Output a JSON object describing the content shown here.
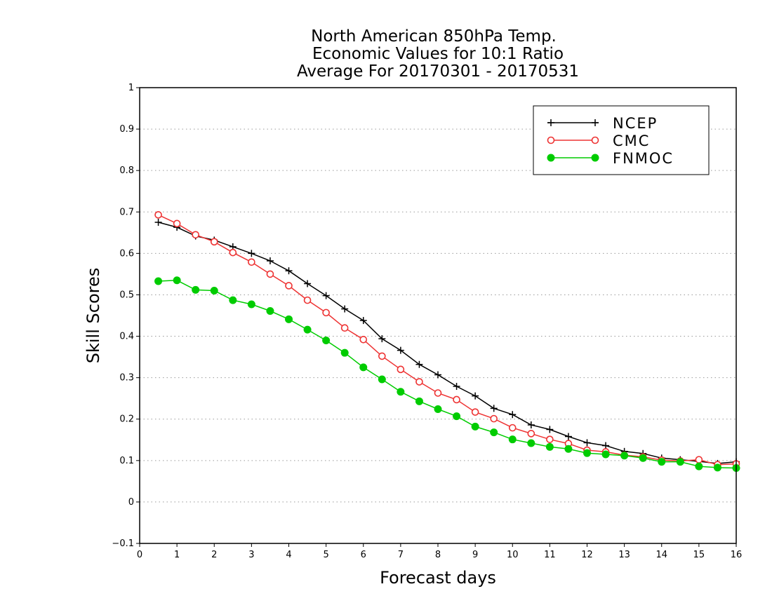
{
  "chart_data": {
    "type": "line",
    "title_lines": [
      "North American 850hPa Temp.",
      "Economic Values for 10:1 Ratio",
      "Average For 20170301 - 20170531"
    ],
    "xlabel": "Forecast days",
    "ylabel": "Skill Scores",
    "xlim": [
      0,
      16
    ],
    "ylim": [
      -0.1,
      1
    ],
    "xticks": [
      "0",
      "1",
      "2",
      "3",
      "4",
      "5",
      "6",
      "7",
      "8",
      "9",
      "10",
      "11",
      "12",
      "13",
      "14",
      "15",
      "16"
    ],
    "yticks": [
      "−0.1",
      "0",
      "0.1",
      "0.2",
      "0.3",
      "0.4",
      "0.5",
      "0.6",
      "0.7",
      "0.8",
      "0.9",
      "1"
    ],
    "grid": "horizontal-dotted",
    "legend_position": "top-right",
    "x": [
      0.5,
      1,
      1.5,
      2,
      2.5,
      3,
      3.5,
      4,
      4.5,
      5,
      5.5,
      6,
      6.5,
      7,
      7.5,
      8,
      8.5,
      9,
      9.5,
      10,
      10.5,
      11,
      11.5,
      12,
      12.5,
      13,
      13.5,
      14,
      14.5,
      15,
      15.5,
      16
    ],
    "series": [
      {
        "name": "NCEP",
        "color": "#000000",
        "marker": "plus",
        "values": [
          0.675,
          0.663,
          0.642,
          0.632,
          0.616,
          0.6,
          0.582,
          0.558,
          0.527,
          0.498,
          0.466,
          0.438,
          0.394,
          0.366,
          0.332,
          0.307,
          0.279,
          0.256,
          0.226,
          0.211,
          0.186,
          0.175,
          0.158,
          0.143,
          0.136,
          0.122,
          0.117,
          0.106,
          0.102,
          0.098,
          0.093,
          0.097
        ]
      },
      {
        "name": "CMC",
        "color": "#ee3333",
        "marker": "open-circle",
        "values": [
          0.693,
          0.672,
          0.645,
          0.628,
          0.602,
          0.579,
          0.55,
          0.522,
          0.487,
          0.457,
          0.42,
          0.392,
          0.352,
          0.32,
          0.29,
          0.263,
          0.247,
          0.217,
          0.201,
          0.179,
          0.165,
          0.151,
          0.141,
          0.125,
          0.121,
          0.113,
          0.109,
          0.101,
          0.099,
          0.102,
          0.09,
          0.092
        ]
      },
      {
        "name": "FNMOC",
        "color": "#00cc00",
        "marker": "filled-circle",
        "values": [
          0.533,
          0.535,
          0.512,
          0.51,
          0.487,
          0.477,
          0.461,
          0.441,
          0.416,
          0.39,
          0.36,
          0.325,
          0.296,
          0.266,
          0.243,
          0.224,
          0.207,
          0.182,
          0.168,
          0.151,
          0.142,
          0.133,
          0.128,
          0.118,
          0.115,
          0.112,
          0.106,
          0.097,
          0.097,
          0.086,
          0.083,
          0.082
        ]
      }
    ]
  }
}
